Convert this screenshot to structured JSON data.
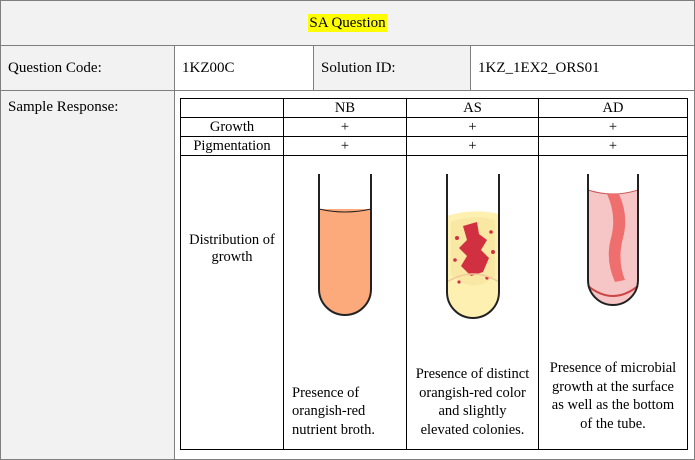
{
  "title": "SA Question",
  "question_code_label": "Question Code:",
  "question_code": "1KZ00C",
  "solution_id_label": "Solution ID:",
  "solution_id": "1KZ_1EX2_ORS01",
  "sample_response_label": "Sample Response:",
  "table": {
    "headers": [
      "NB",
      "AS",
      "AD"
    ],
    "rows": [
      {
        "label": "Growth",
        "values": [
          "+",
          "+",
          "+"
        ]
      },
      {
        "label": "Pigmentation",
        "values": [
          "+",
          "+",
          "+"
        ]
      }
    ],
    "distribution_label": "Distribution of growth",
    "descriptions": [
      "Presence of orangish-red nutrient broth.",
      "Presence of distinct orangish-red color and slightly elevated colonies.",
      "Presence of microbial growth at the surface as well as the bottom of the tube."
    ]
  },
  "colors": {
    "highlight": "#ffff00",
    "label_bg": "#f2f2f2",
    "broth": "#fcaa7c",
    "slant_agar": "#fdf0b0",
    "colony_red": "#d03040",
    "deep_agar": "#f6c6c6",
    "growth_streak": "#ef6f6f"
  }
}
